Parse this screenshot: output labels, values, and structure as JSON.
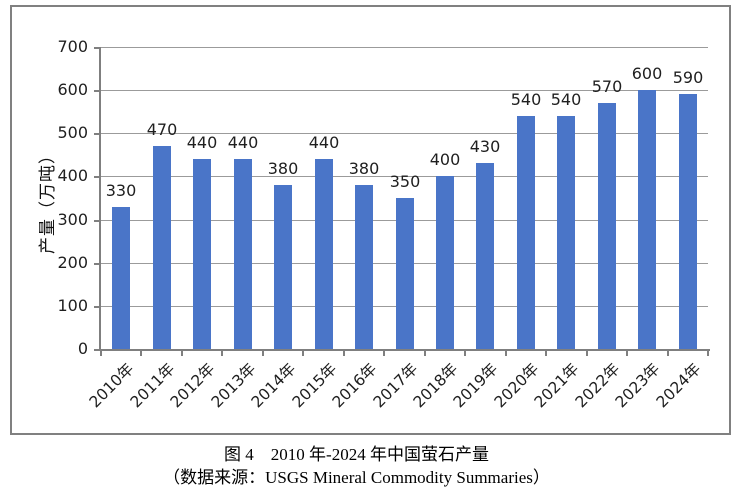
{
  "chart_data": {
    "type": "bar",
    "title": "图 4　2010 年-2024 年中国萤石产量",
    "categories": [
      "2010年",
      "2011年",
      "2012年",
      "2013年",
      "2014年",
      "2015年",
      "2016年",
      "2017年",
      "2018年",
      "2019年",
      "2020年",
      "2021年",
      "2022年",
      "2023年",
      "2024年"
    ],
    "values": [
      330,
      470,
      440,
      440,
      380,
      440,
      380,
      350,
      400,
      430,
      540,
      540,
      570,
      600,
      590
    ],
    "xlabel": "",
    "ylabel": "产量（万吨）",
    "ylim": [
      0,
      700
    ],
    "yticks": [
      0,
      100,
      200,
      300,
      400,
      500,
      600,
      700
    ],
    "grid": true,
    "legend": "none",
    "data_labels": true,
    "bar_color": "#4a75c8",
    "gridline_color": "#9b9b9b",
    "axis_color": "#7f7f7f",
    "frame_color": "#808080",
    "text_color": "#1f1f1f"
  },
  "caption": {
    "line1": "图 4　2010 年-2024 年中国萤石产量",
    "line2": "（数据来源：USGS Mineral Commodity Summaries）"
  }
}
